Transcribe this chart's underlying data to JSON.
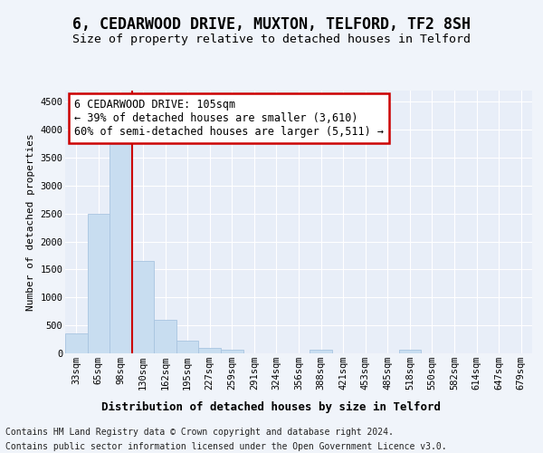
{
  "title1": "6, CEDARWOOD DRIVE, MUXTON, TELFORD, TF2 8SH",
  "title2": "Size of property relative to detached houses in Telford",
  "xlabel": "Distribution of detached houses by size in Telford",
  "ylabel": "Number of detached properties",
  "categories": [
    "33sqm",
    "65sqm",
    "98sqm",
    "130sqm",
    "162sqm",
    "195sqm",
    "227sqm",
    "259sqm",
    "291sqm",
    "324sqm",
    "356sqm",
    "388sqm",
    "421sqm",
    "453sqm",
    "485sqm",
    "518sqm",
    "550sqm",
    "582sqm",
    "614sqm",
    "647sqm",
    "679sqm"
  ],
  "values": [
    350,
    2500,
    3750,
    1650,
    600,
    220,
    100,
    60,
    0,
    0,
    0,
    60,
    0,
    0,
    0,
    65,
    0,
    0,
    0,
    0,
    0
  ],
  "bar_color": "#c8ddf0",
  "bar_edgecolor": "#a8c4e0",
  "redline_index": 2.5,
  "annotation_line1": "6 CEDARWOOD DRIVE: 105sqm",
  "annotation_line2": "← 39% of detached houses are smaller (3,610)",
  "annotation_line3": "60% of semi-detached houses are larger (5,511) →",
  "annotation_border_color": "#cc0000",
  "ylim_max": 4700,
  "yticks": [
    0,
    500,
    1000,
    1500,
    2000,
    2500,
    3000,
    3500,
    4000,
    4500
  ],
  "footer_line1": "Contains HM Land Registry data © Crown copyright and database right 2024.",
  "footer_line2": "Contains public sector information licensed under the Open Government Licence v3.0.",
  "bg_color": "#f0f4fa",
  "plot_bg_color": "#e8eef8",
  "grid_color": "#ffffff",
  "ann_fontsize": 8.5,
  "tick_fontsize": 7.5,
  "ylabel_fontsize": 8,
  "title1_fontsize": 12,
  "title2_fontsize": 9.5,
  "xlabel_fontsize": 9,
  "footer_fontsize": 7
}
